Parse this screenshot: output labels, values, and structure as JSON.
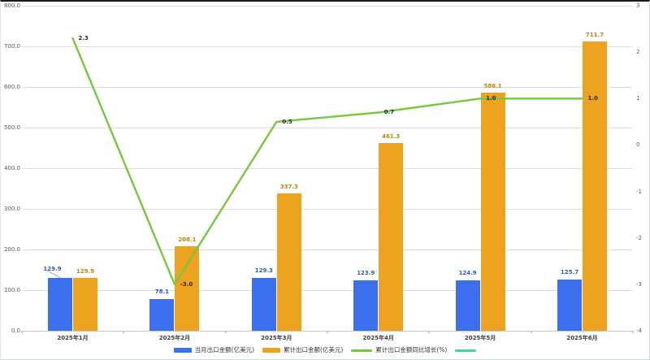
{
  "chart_data": {
    "type": "bar",
    "subtype": "combo-bar-line-dual-axis",
    "categories": [
      "2025年1月",
      "2025年2月",
      "2025年3月",
      "2025年4月",
      "2025年5月",
      "2025年6月"
    ],
    "series": [
      {
        "name": "当月出口金额(亿美元)",
        "type": "bar",
        "axis": "left",
        "color": "#3B70ED",
        "label_color": "#2E5BBA",
        "values": [
          129.9,
          78.1,
          129.3,
          123.9,
          124.9,
          125.7
        ],
        "labels": [
          "129.9",
          "78.1",
          "129.3",
          "123.9",
          "124.9",
          "125.7"
        ]
      },
      {
        "name": "累计出口金额(亿美元)",
        "type": "bar",
        "axis": "left",
        "color": "#EEA320",
        "label_color": "#B8860B",
        "values": [
          129.9,
          208.1,
          337.3,
          461.3,
          586.1,
          711.7
        ],
        "labels": [
          "129.9",
          "208.1",
          "337.3",
          "461.3",
          "586.1",
          "711.7"
        ]
      },
      {
        "name": "累计出口金额同比增长(%)",
        "type": "line",
        "axis": "right",
        "color": "#76C83C",
        "label_color": "#2b2b2b",
        "values": [
          2.3,
          -3.0,
          0.5,
          0.7,
          1.0,
          1.0
        ],
        "labels": [
          "2.3",
          "-3.0",
          "0.5",
          "0.7",
          "1.0",
          "1.0"
        ]
      }
    ],
    "left_axis": {
      "min": 0,
      "max": 800,
      "step": 100,
      "tick_labels": [
        "800.0",
        "700.0",
        "600.0",
        "500.0",
        "400.0",
        "300.0",
        "200.0",
        "100.0",
        "0.0"
      ]
    },
    "right_axis": {
      "min": -4,
      "max": 3,
      "step": 1,
      "tick_labels": [
        "3",
        "2",
        "1",
        "0",
        "-1",
        "-2",
        "-3",
        "-4"
      ]
    },
    "grid": true,
    "legend_position": "bottom",
    "legend": [
      {
        "label": "当月出口金额(亿美元)",
        "swatch": "bar",
        "color": "#3B70ED"
      },
      {
        "label": "累计出口金额(亿美元)",
        "swatch": "bar",
        "color": "#EEA320"
      },
      {
        "label": "累计出口金额同比增长(%)",
        "swatch": "line",
        "color": "#76C83C"
      },
      {
        "label": "",
        "swatch": "line",
        "color": "#45D0A5"
      }
    ]
  }
}
